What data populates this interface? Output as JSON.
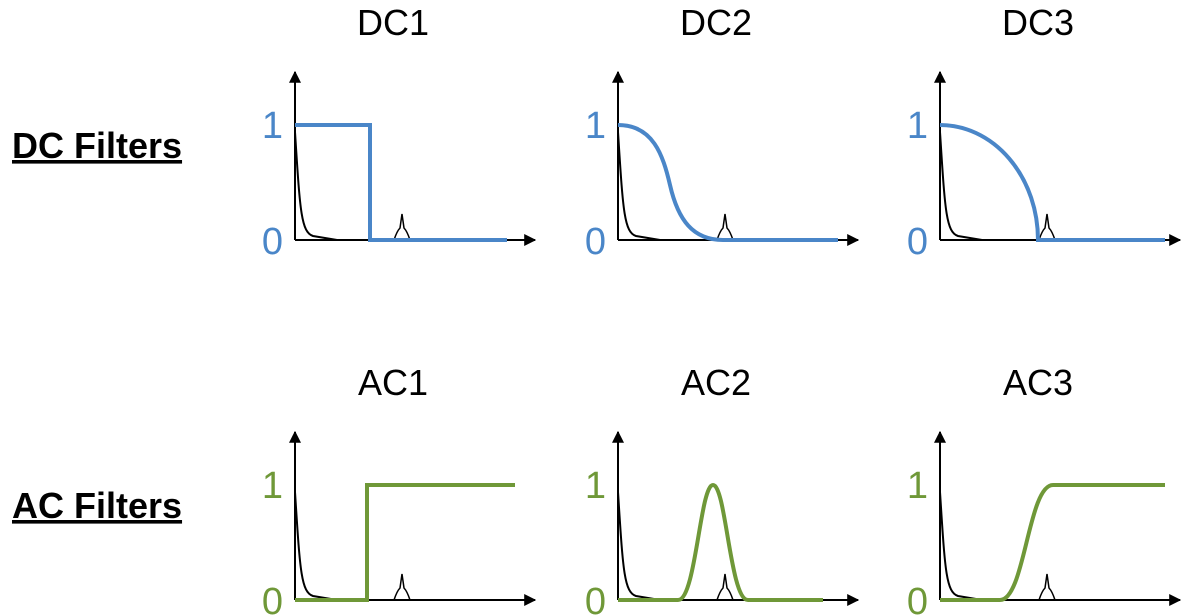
{
  "colors": {
    "dc": "#4a86c8",
    "ac": "#6f9838",
    "spectrum": "#000000"
  },
  "rows": [
    {
      "label": "DC Filters",
      "color_key": "dc",
      "panels": [
        {
          "title": "DC1",
          "shape": "step-low",
          "tick_high": "1",
          "tick_low": "0"
        },
        {
          "title": "DC2",
          "shape": "smooth-low",
          "tick_high": "1",
          "tick_low": "0"
        },
        {
          "title": "DC3",
          "shape": "quarter-circle",
          "tick_high": "1",
          "tick_low": "0"
        }
      ]
    },
    {
      "label": "AC Filters",
      "color_key": "ac",
      "panels": [
        {
          "title": "AC1",
          "shape": "step-high",
          "tick_high": "1",
          "tick_low": "0"
        },
        {
          "title": "AC2",
          "shape": "bandpass",
          "tick_high": "1",
          "tick_low": "0"
        },
        {
          "title": "AC3",
          "shape": "smooth-high",
          "tick_high": "1",
          "tick_low": "0"
        }
      ]
    }
  ]
}
